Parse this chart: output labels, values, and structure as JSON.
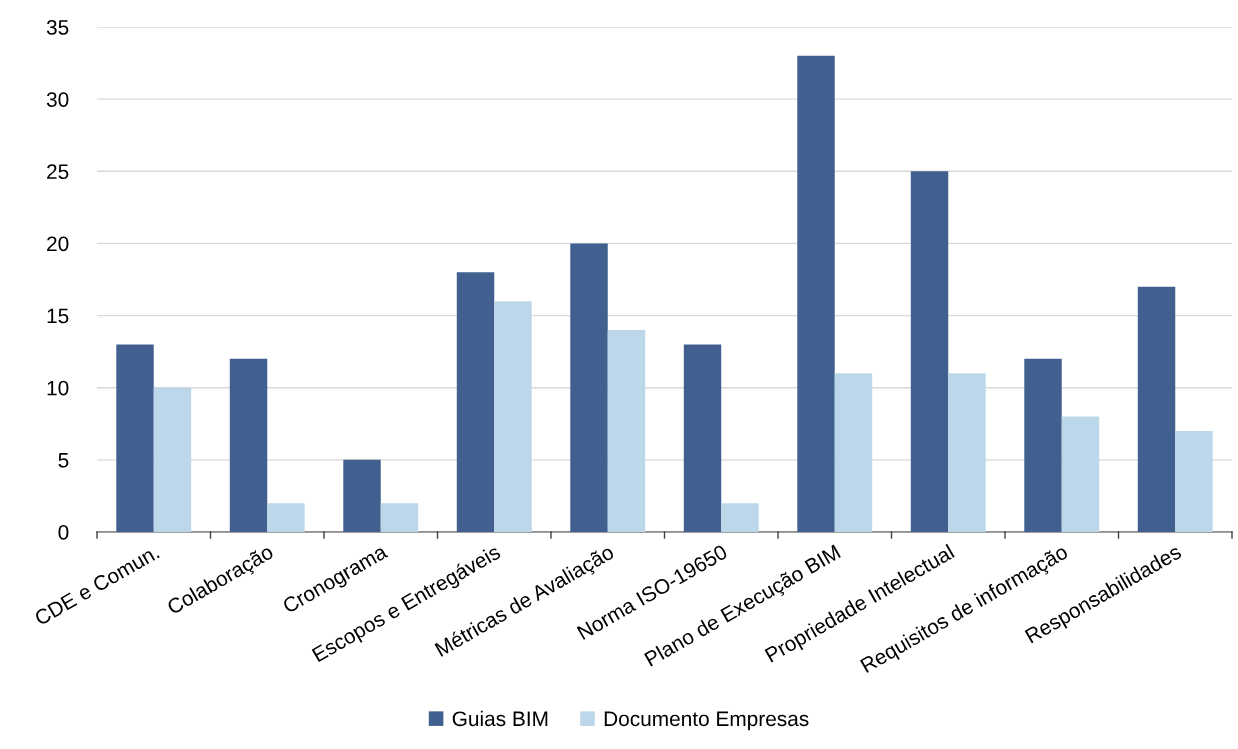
{
  "chart_data": {
    "type": "bar",
    "categories": [
      "CDE e Comun.",
      "Colaboração",
      "Cronograma",
      "Escopos e Entregáveis",
      "Métricas de Avaliação",
      "Norma ISO-19650",
      "Plano de Execução BIM",
      "Propriedade Intelectual",
      "Requisitos de informação",
      "Responsabilidades"
    ],
    "series": [
      {
        "name": "Guias BIM",
        "color": "#41608f",
        "values": [
          13,
          12,
          5,
          18,
          20,
          13,
          33,
          25,
          12,
          17
        ]
      },
      {
        "name": "Documento Empresas",
        "color": "#bcd7ea",
        "values": [
          10,
          2,
          2,
          16,
          14,
          2,
          11,
          11,
          8,
          7
        ]
      }
    ],
    "ylim": [
      0,
      35
    ],
    "yticks": [
      0,
      5,
      10,
      15,
      20,
      25,
      30,
      35
    ],
    "grid": "y",
    "legend": "bottom"
  }
}
